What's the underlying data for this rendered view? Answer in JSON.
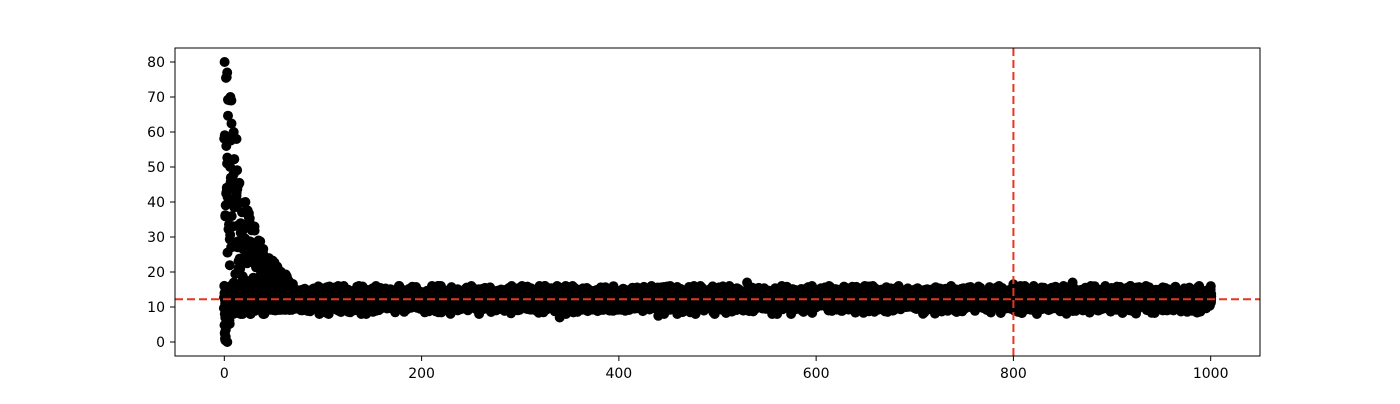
{
  "chart_data": {
    "type": "scatter",
    "title": "",
    "xlabel": "",
    "ylabel": "",
    "xlim": [
      -50,
      1050
    ],
    "ylim": [
      -4,
      84
    ],
    "x_ticks": [
      0,
      200,
      400,
      600,
      800,
      1000
    ],
    "y_ticks": [
      0,
      10,
      20,
      30,
      40,
      50,
      60,
      70,
      80
    ],
    "grid": false,
    "legend": "none",
    "marker_color": "#000000",
    "series": [
      {
        "description": "Dense black scatter of 1000 iterations: initial transient with values up to ~80 decaying to a steady band around 8–16 by x≈70, staying flat through x=1000",
        "x_range": [
          0,
          1000
        ],
        "n_points_per_x_approx": 12,
        "transient": {
          "x_end": 70,
          "peak_values": [
            80,
            77,
            70,
            69,
            60,
            58,
            56,
            51,
            50,
            47,
            45,
            43
          ],
          "decay_envelope": [
            {
              "x": 0,
              "upper": 80,
              "lower": 0
            },
            {
              "x": 5,
              "upper": 70,
              "lower": 5
            },
            {
              "x": 10,
              "upper": 55,
              "lower": 8
            },
            {
              "x": 20,
              "upper": 43,
              "lower": 9
            },
            {
              "x": 30,
              "upper": 34,
              "lower": 9
            },
            {
              "x": 40,
              "upper": 27,
              "lower": 9
            },
            {
              "x": 50,
              "upper": 23,
              "lower": 9
            },
            {
              "x": 60,
              "upper": 20,
              "lower": 9
            },
            {
              "x": 70,
              "upper": 17,
              "lower": 9
            }
          ]
        },
        "steady_state": {
          "center": 12.2,
          "band": [
            8,
            16
          ],
          "occasional_extremes": [
            7,
            17
          ]
        }
      }
    ],
    "reference_lines": [
      {
        "orientation": "horizontal",
        "value": 12.2,
        "color": "#e8361e",
        "style": "dashed"
      },
      {
        "orientation": "vertical",
        "value": 800,
        "color": "#e8361e",
        "style": "dashed"
      }
    ]
  }
}
